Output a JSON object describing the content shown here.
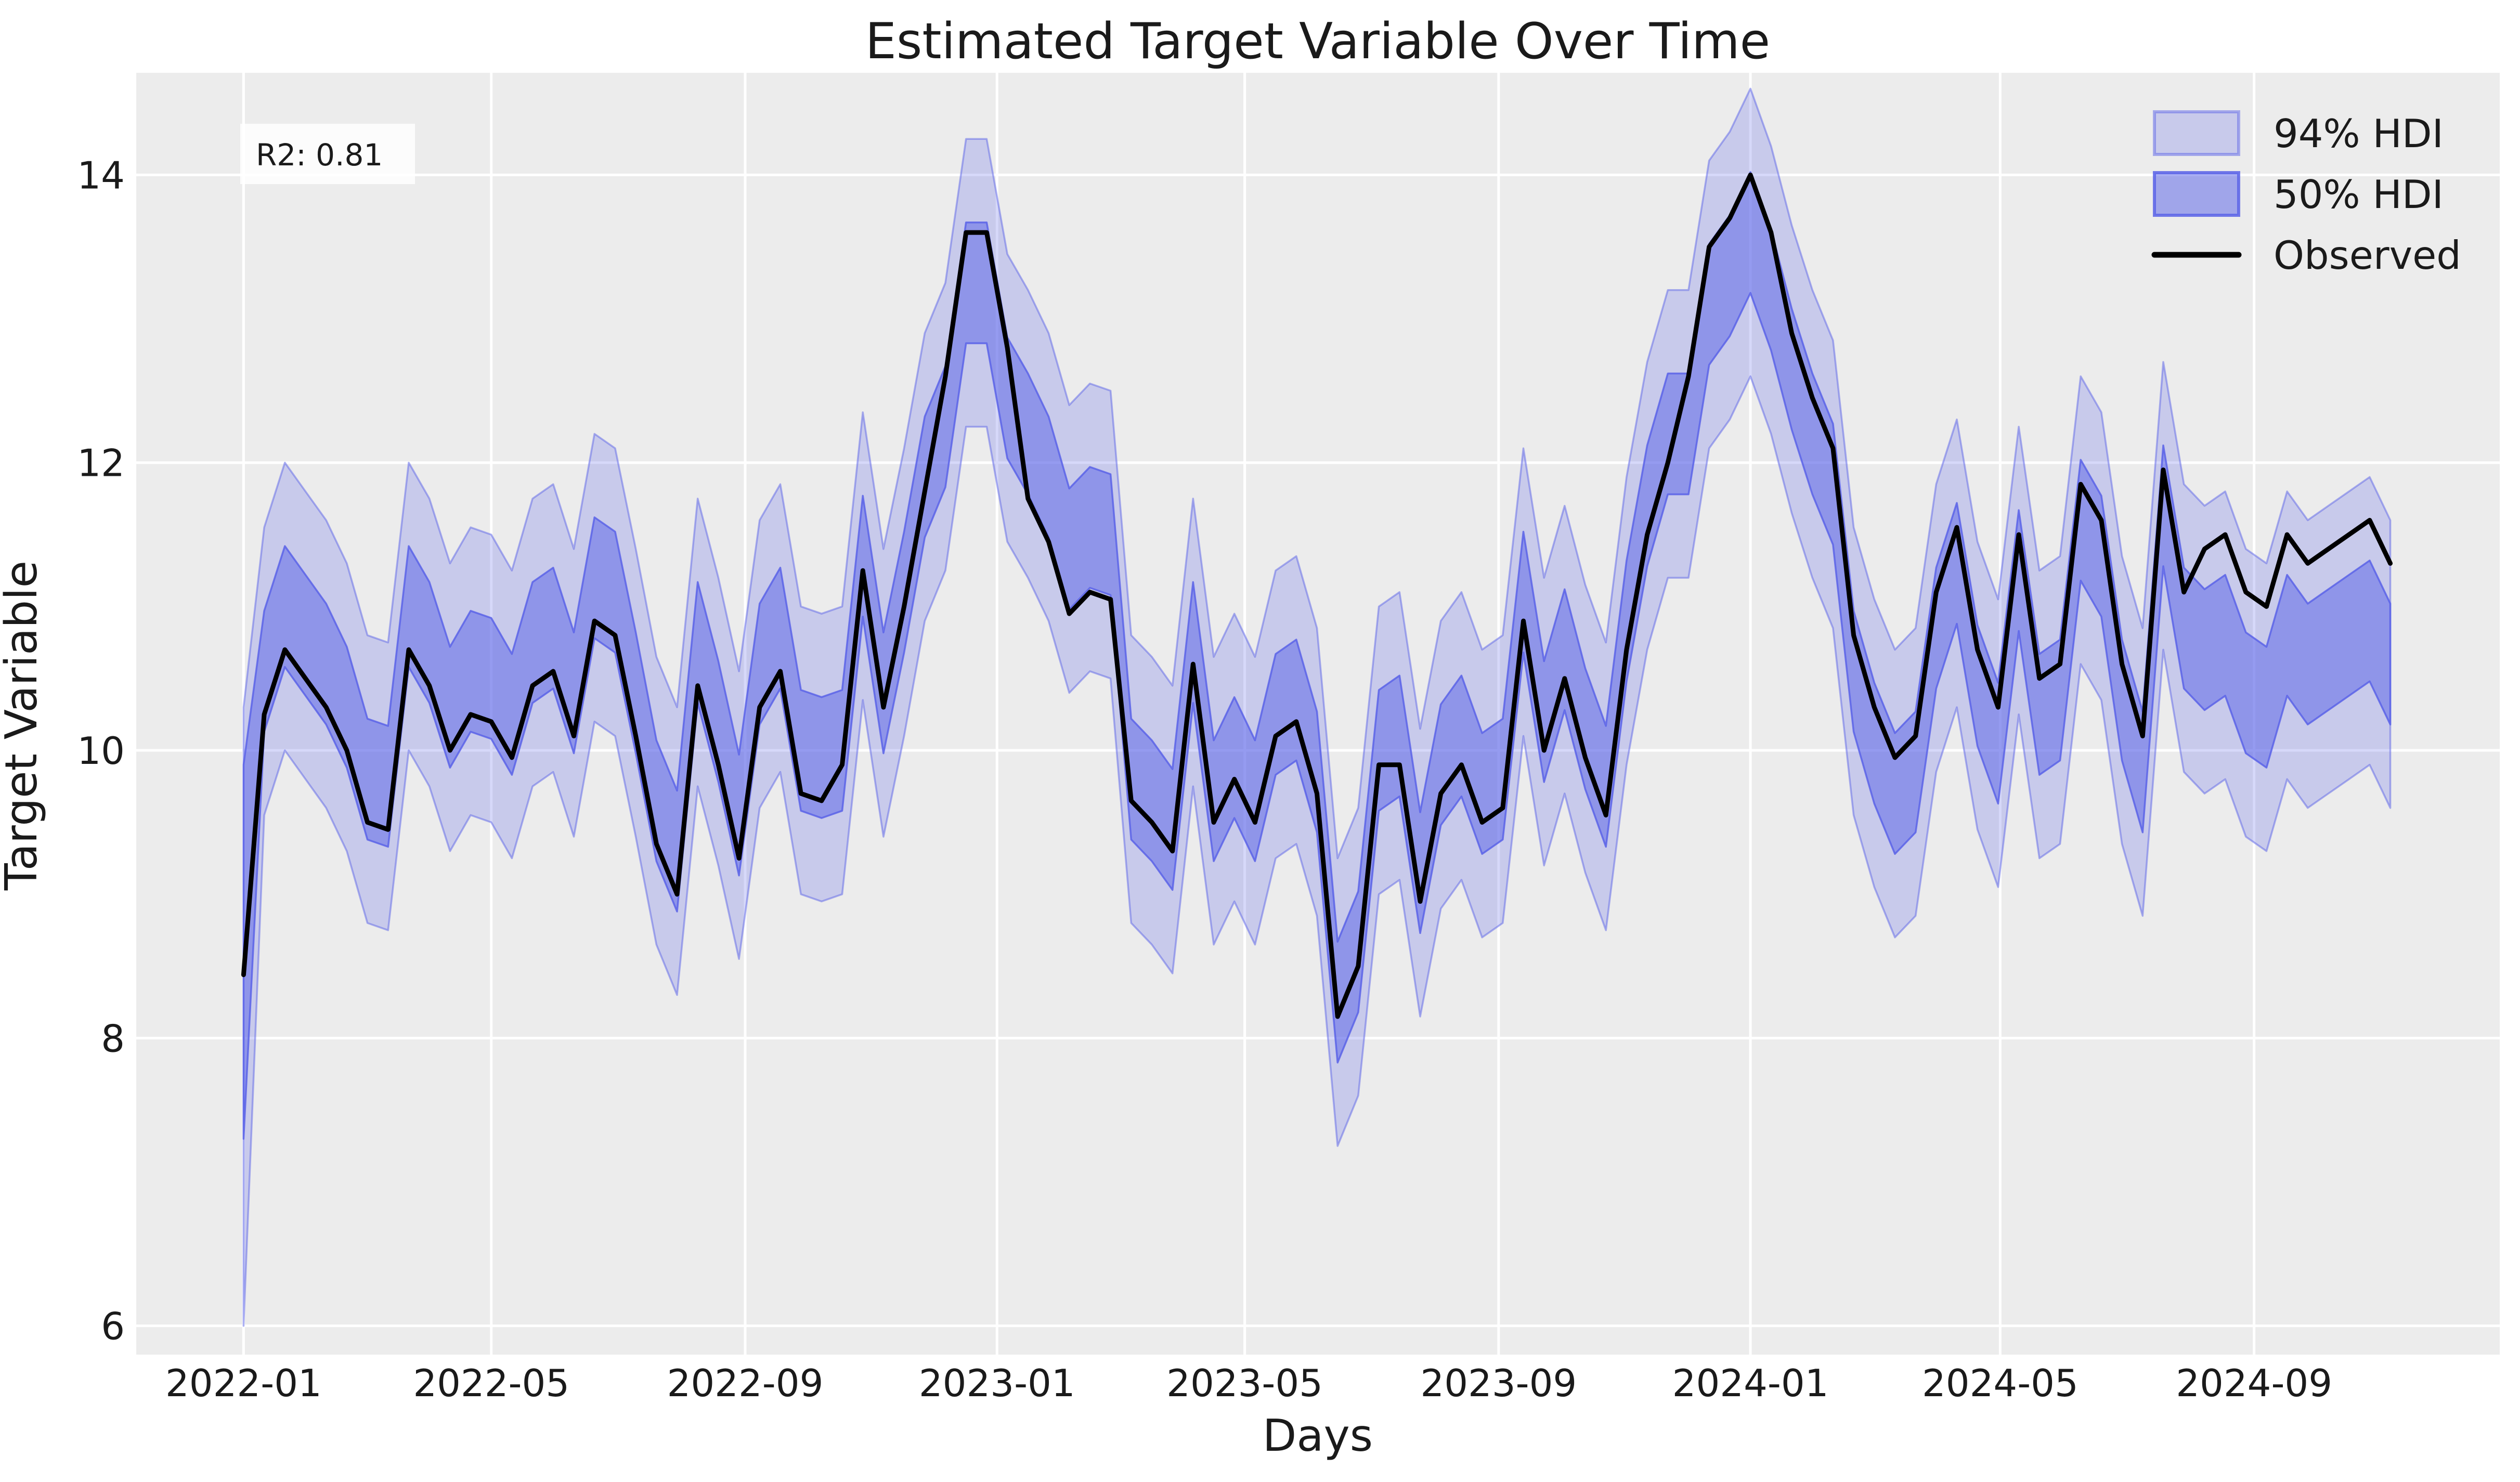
{
  "title": "Estimated Target Variable Over Time",
  "annotation": {
    "text": "R2: 0.81",
    "r2": 0.81
  },
  "legend": {
    "position": "upper right",
    "items": [
      {
        "label": "94% HDI"
      },
      {
        "label": "50% HDI"
      },
      {
        "label": "Observed"
      }
    ]
  },
  "chart_data": {
    "type": "line",
    "title": "Estimated Target Variable Over Time",
    "xlabel": "Days",
    "ylabel": "Target Variable",
    "grid": true,
    "legend_position": "upper right",
    "x_start_date": "2022-01-01",
    "sample_step_days": 10,
    "x_tick_labels": [
      "2022-01",
      "2022-05",
      "2022-09",
      "2023-01",
      "2023-05",
      "2023-09",
      "2024-01",
      "2024-05",
      "2024-09"
    ],
    "x_tick_day_index": [
      0,
      120,
      243,
      365,
      485,
      608,
      730,
      851,
      974
    ],
    "y_ticks": [
      6,
      8,
      10,
      12,
      14
    ],
    "x_domain_days": [
      -52,
      1093
    ],
    "y_domain": [
      5.8,
      14.71
    ],
    "series": [
      {
        "name": "Observed",
        "kind": "line",
        "values": [
          8.44,
          10.25,
          10.7,
          10.5,
          10.3,
          10.0,
          9.5,
          9.45,
          10.7,
          10.45,
          10.0,
          10.25,
          10.2,
          9.95,
          10.45,
          10.55,
          10.1,
          10.9,
          10.8,
          10.1,
          9.35,
          9.0,
          10.45,
          9.9,
          9.25,
          10.3,
          10.55,
          9.7,
          9.65,
          9.9,
          11.25,
          10.3,
          11.0,
          11.8,
          12.6,
          13.6,
          13.6,
          12.8,
          11.75,
          11.45,
          10.95,
          11.1,
          11.05,
          9.65,
          9.5,
          9.3,
          10.6,
          9.5,
          9.8,
          9.5,
          10.1,
          10.2,
          9.7,
          8.15,
          8.5,
          9.9,
          9.9,
          8.95,
          9.7,
          9.9,
          9.5,
          9.6,
          10.9,
          10.0,
          10.5,
          9.95,
          9.55,
          10.7,
          11.5,
          12.0,
          12.6,
          13.5,
          13.7,
          14.0,
          13.6,
          12.9,
          12.45,
          12.1,
          10.8,
          10.3,
          9.95,
          10.1,
          11.1,
          11.55,
          10.7,
          10.3,
          11.5,
          10.5,
          10.6,
          11.85,
          11.6,
          10.6,
          10.1,
          11.95,
          11.1,
          11.4,
          11.5,
          11.1,
          11.0,
          11.5,
          11.3,
          11.4,
          11.5,
          11.6,
          11.3
        ]
      },
      {
        "name": "HDI band mid offset from Observed",
        "kind": "offset",
        "values": [
          0.0,
          0.3,
          0.3,
          0.3,
          0.3,
          0.3,
          0.3,
          0.3,
          0.3,
          0.3,
          0.3,
          0.3,
          0.3,
          0.3,
          0.3,
          0.3,
          0.3,
          0.3,
          0.3,
          0.3,
          0.3,
          0.3,
          0.3,
          0.3,
          0.3,
          0.3,
          0.3,
          0.3,
          0.3,
          0.1,
          0.1,
          0.1,
          0.1,
          0.1,
          -0.35,
          -0.35,
          -0.35,
          -0.35,
          0.45,
          0.45,
          0.45,
          0.45,
          0.45,
          0.15,
          0.15,
          0.15,
          0.15,
          0.15,
          0.15,
          0.15,
          0.15,
          0.15,
          0.15,
          0.1,
          0.1,
          0.1,
          0.2,
          0.2,
          0.2,
          0.2,
          0.2,
          0.2,
          0.2,
          0.2,
          0.2,
          0.2,
          0.2,
          0.2,
          0.2,
          0.2,
          -0.4,
          -0.4,
          -0.4,
          -0.4,
          -0.4,
          -0.25,
          -0.25,
          -0.25,
          -0.25,
          -0.25,
          -0.25,
          -0.25,
          -0.25,
          -0.25,
          -0.25,
          -0.25,
          -0.25,
          -0.25,
          -0.25,
          -0.25,
          -0.25,
          -0.25,
          -0.25,
          -0.25,
          -0.25,
          -0.7,
          -0.7,
          -0.7,
          -0.7,
          -0.7,
          -0.7,
          -0.7,
          -0.7,
          -0.7,
          -0.7
        ]
      }
    ],
    "hdi50_halfwidth": 0.42,
    "hdi94_halfwidth": 1.0,
    "first_point_hdi94": [
      6.0,
      10.3
    ],
    "first_point_hdi50": [
      7.3,
      9.9
    ]
  },
  "colors": {
    "figure_background": "#ffffff",
    "plot_background": "#ececec",
    "gridline": "#ffffff",
    "observed_line": "#000000",
    "hdi_base": "#5b63e8",
    "hdi94_fill": "rgba(91,99,232,0.25)",
    "hdi94_edge": "rgba(91,99,232,0.50)",
    "hdi50_fill": "rgba(91,99,232,0.52)",
    "hdi50_edge": "rgba(91,99,232,0.85)",
    "annotation_box": "rgba(255,255,255,0.85)",
    "text": "#1a1a1a"
  }
}
